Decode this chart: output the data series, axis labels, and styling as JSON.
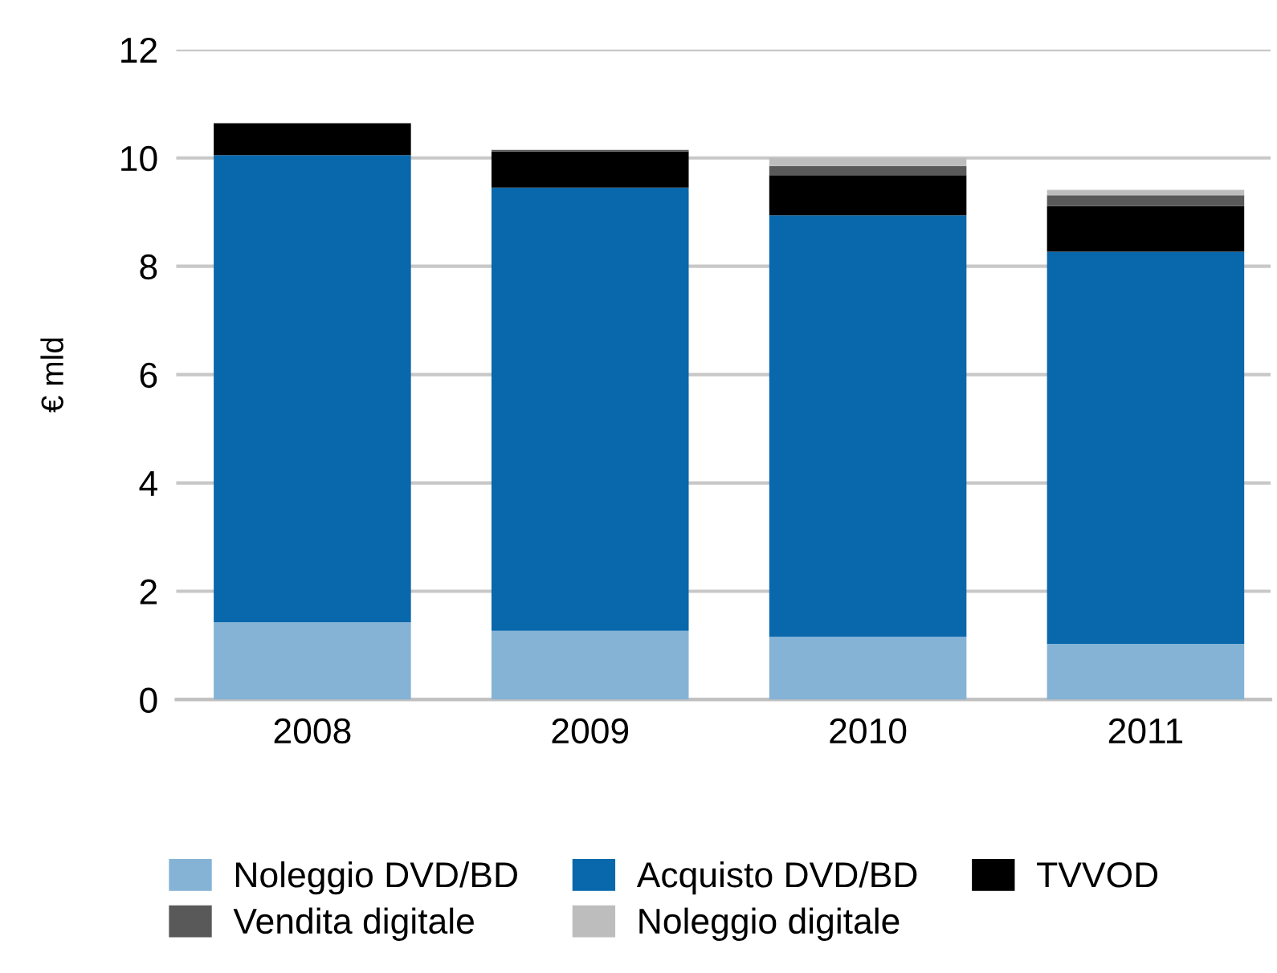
{
  "chart_data": {
    "type": "bar",
    "stacked": true,
    "ylabel": "€ mld",
    "categories": [
      "2008",
      "2009",
      "2010",
      "2011"
    ],
    "series": [
      {
        "name": "Noleggio DVD/BD",
        "color": "#85b3d6",
        "values": [
          1.43,
          1.27,
          1.16,
          1.03
        ]
      },
      {
        "name": "Acquisto DVD/BD",
        "color": "#0868ab",
        "values": [
          8.62,
          8.18,
          7.78,
          7.24
        ]
      },
      {
        "name": "TVVOD",
        "color": "#000000",
        "values": [
          0.59,
          0.67,
          0.74,
          0.84
        ]
      },
      {
        "name": "Vendita digitale",
        "color": "#595959",
        "values": [
          null,
          0.03,
          0.17,
          0.2
        ]
      },
      {
        "name": "Noleggio digitale",
        "color": "#bdbdbd",
        "values": [
          null,
          null,
          0.15,
          0.1
        ]
      }
    ],
    "ylim": [
      0,
      12
    ],
    "yticks": [
      0,
      2,
      4,
      6,
      8,
      10,
      12
    ],
    "grid": "y",
    "legend": "bottom"
  }
}
